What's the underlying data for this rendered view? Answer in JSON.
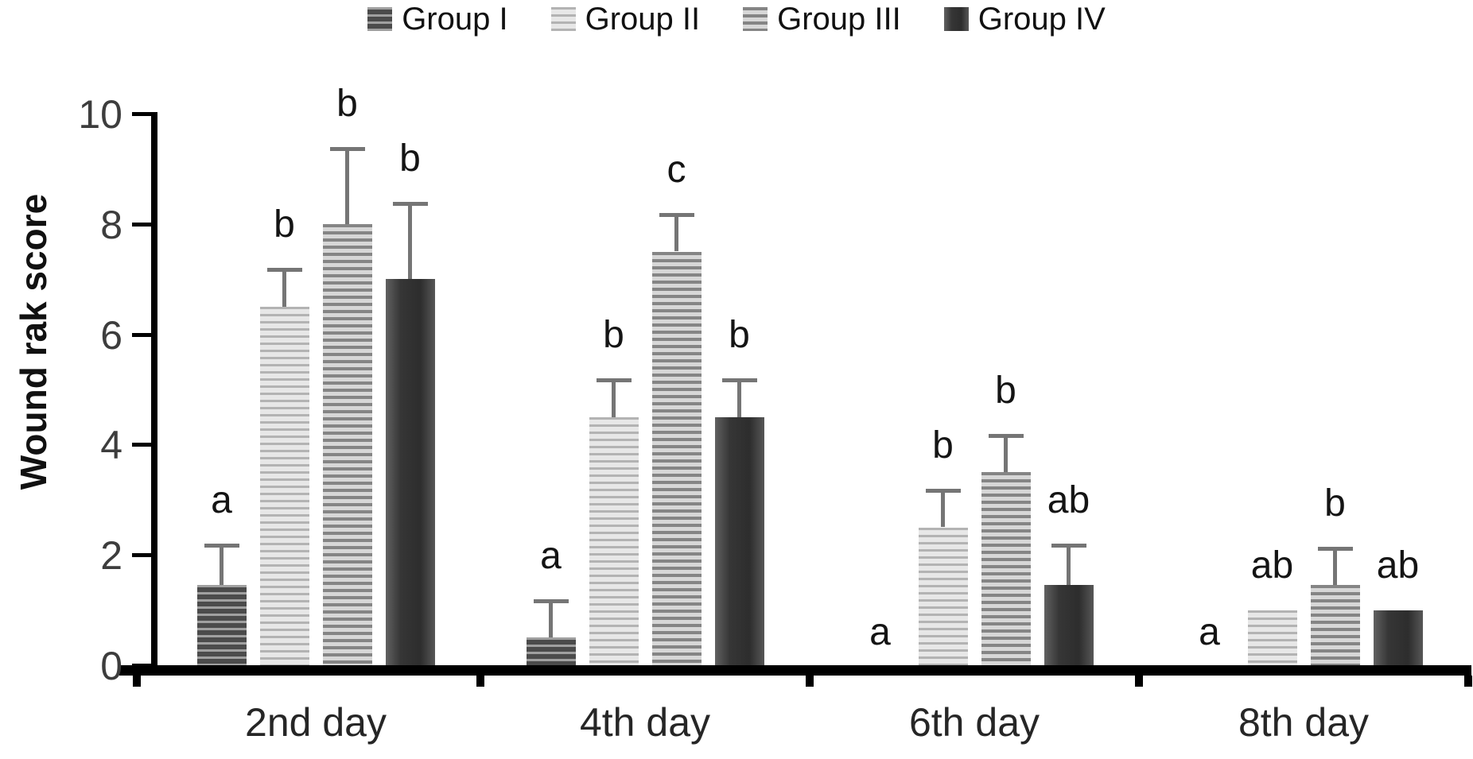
{
  "figure": {
    "y_axis_title": "Wound rak score",
    "y_tick_labels": [
      "0",
      "2",
      "4",
      "6",
      "8",
      "10"
    ],
    "x_axis_labels": [
      "2nd day",
      "4th day",
      "6th day",
      "8th day"
    ]
  },
  "legend": {
    "position": "top",
    "items": [
      {
        "label": "Group I",
        "swatch": "dark-horizontal-stripes"
      },
      {
        "label": "Group II",
        "swatch": "light-horizontal-stripes"
      },
      {
        "label": "Group III",
        "swatch": "medium-horizontal-stripes"
      },
      {
        "label": "Group IV",
        "swatch": "solid-dark"
      }
    ]
  },
  "chart_data": {
    "type": "bar",
    "title": "",
    "xlabel": "",
    "ylabel": "Wound rak score",
    "ylim": [
      0,
      10
    ],
    "yticks": [
      0,
      2,
      4,
      6,
      8,
      10
    ],
    "grid": false,
    "legend_position": "top",
    "error_bars": "upper-only",
    "categories": [
      "2nd day",
      "4th day",
      "6th day",
      "8th day"
    ],
    "series": [
      {
        "name": "Group I",
        "fill": "dark-horizontal-stripes",
        "values": [
          1.45,
          0.5,
          0,
          0
        ],
        "errors": [
          0.75,
          0.7,
          0,
          0
        ],
        "sig_letters": [
          "a",
          "a",
          "a",
          "a"
        ]
      },
      {
        "name": "Group II",
        "fill": "light-horizontal-stripes",
        "values": [
          6.5,
          4.5,
          2.5,
          1.0
        ],
        "errors": [
          0.7,
          0.7,
          0.7,
          0
        ],
        "sig_letters": [
          "b",
          "b",
          "b",
          "ab"
        ]
      },
      {
        "name": "Group III",
        "fill": "medium-horizontal-stripes",
        "values": [
          8.0,
          7.5,
          3.5,
          1.45
        ],
        "errors": [
          1.4,
          0.7,
          0.7,
          0.7
        ],
        "sig_letters": [
          "b",
          "c",
          "b",
          "b"
        ]
      },
      {
        "name": "Group IV",
        "fill": "solid-dark",
        "values": [
          7.0,
          4.5,
          1.45,
          1.0
        ],
        "errors": [
          1.4,
          0.7,
          0.75,
          0
        ],
        "sig_letters": [
          "b",
          "b",
          "ab",
          "ab"
        ]
      }
    ]
  },
  "colors": {
    "background": "#ffffff",
    "axis": "#000000",
    "error_bar": "#757575",
    "sig_letter": "#141414",
    "y_tick_label": "#3d3d3d",
    "x_axis_label": "#262626",
    "group1_base": "#4b4b4b",
    "group1_stripe": "#a0a0a0",
    "group2_base": "#e7e7e7",
    "group2_stripe": "#b3b3b3",
    "group3_base": "#d7d7d7",
    "group3_stripe": "#858585",
    "group4_solid": "#2d2d2d"
  }
}
